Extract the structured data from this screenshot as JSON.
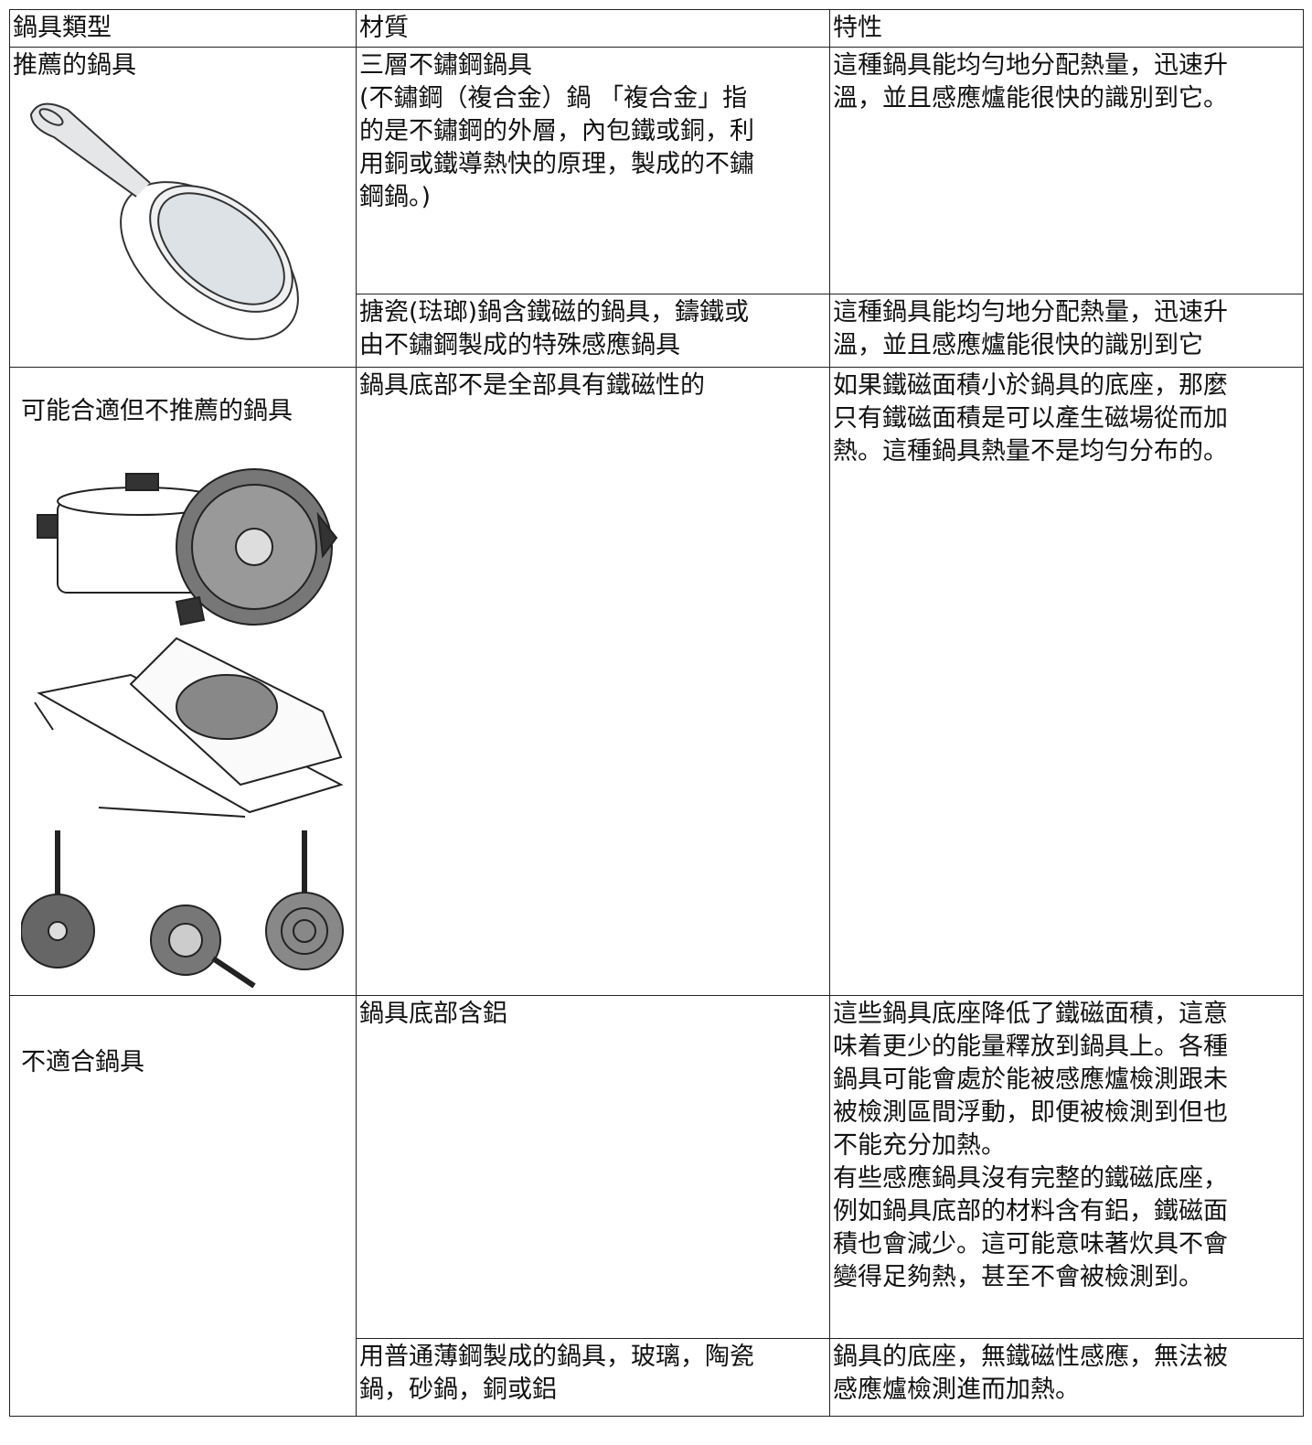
{
  "table": {
    "header": [
      "鍋具類型",
      "材質",
      "特性"
    ],
    "groups": [
      {
        "type": "推薦的鍋具",
        "items": [
          {
            "material": [
              "三層不鏽鋼鍋具",
              "(不鏽鋼（複合金）鍋 「複合金」指",
              "的是不鏽鋼的外層，內包鐵或銅，利",
              "用銅或鐵導熱快的原理，製成的不鏽",
              "鋼鍋。)"
            ],
            "feature": [
              "這種鍋具能均勻地分配熱量，迅速升",
              "溫，並且感應爐能很快的識別到它。"
            ]
          },
          {
            "material": [
              "搪瓷(琺瑯)鍋含鐵磁的鍋具，鑄鐵或",
              "由不鏽鋼製成的特殊感應鍋具"
            ],
            "feature": [
              "這種鍋具能均勻地分配熱量，迅速升",
              "溫，並且感應爐能很快的識別到它"
            ]
          }
        ]
      },
      {
        "type": "可能合適但不推薦的鍋具",
        "items": [
          {
            "material": [
              "鍋具底部不是全部具有鐵磁性的"
            ],
            "feature": [
              "如果鐵磁面積小於鍋具的底座，那麼",
              "只有鐵磁面積是可以產生磁場從而加",
              "熱。這種鍋具熱量不是均勻分布的。"
            ]
          }
        ]
      },
      {
        "type": "不適合鍋具",
        "items": [
          {
            "material": [
              "鍋具底部含鋁"
            ],
            "feature": [
              "這些鍋具底座降低了鐵磁面積，這意",
              "味着更少的能量釋放到鍋具上。各種",
              "鍋具可能會處於能被感應爐檢測跟未",
              "被檢測區間浮動，即便被檢測到但也",
              "不能充分加熱。",
              "有些感應鍋具沒有完整的鐵磁底座，",
              "例如鍋具底部的材料含有鋁，鐵磁面",
              "積也會減少。這可能意味著炊具不會",
              "變得足夠熱，甚至不會被檢測到。"
            ]
          },
          {
            "material": [
              "用普通薄鋼製成的鍋具，玻璃，陶瓷",
              "鍋，砂鍋，銅或鋁"
            ],
            "feature": [
              "鍋具的底座，無鐵磁性感應，無法被",
              "感應爐檢測進而加熱。"
            ]
          }
        ]
      }
    ]
  }
}
